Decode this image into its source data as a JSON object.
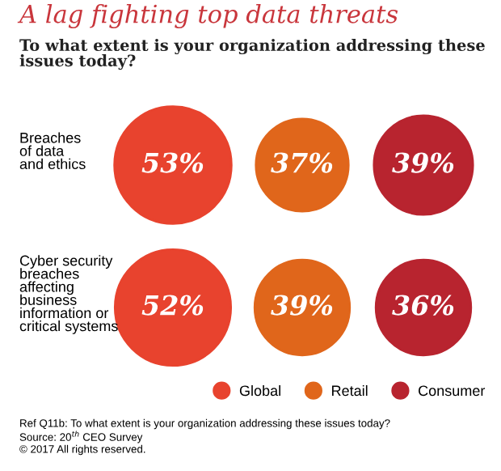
{
  "chart_data": {
    "type": "other",
    "title": "A lag fighting top data threats",
    "subtitle": "To what extent is your organization addressing these\nissues today?",
    "categories": [
      "Breaches\nof data\nand ethics",
      "Cyber security\nbreaches\naffecting\nbusiness\ninformation or\ncritical systems"
    ],
    "series": [
      {
        "name": "Global",
        "color": "#e8432e",
        "values": [
          53,
          52
        ],
        "value_labels": [
          "53%",
          "52%"
        ]
      },
      {
        "name": "Retail",
        "color": "#e0661b",
        "values": [
          37,
          39
        ],
        "value_labels": [
          "37%",
          "39%"
        ]
      },
      {
        "name": "Consumer",
        "color": "#b8242f",
        "values": [
          39,
          36
        ],
        "value_labels": [
          "39%",
          "36%"
        ]
      }
    ],
    "legend": "bottom right",
    "annotations": [
      "Ref Q11b: To what extent is your organization addressing these issues today?",
      "Source: 20$^{th}$ CEO Survey",
      "© 2017 All rights reserved."
    ]
  }
}
